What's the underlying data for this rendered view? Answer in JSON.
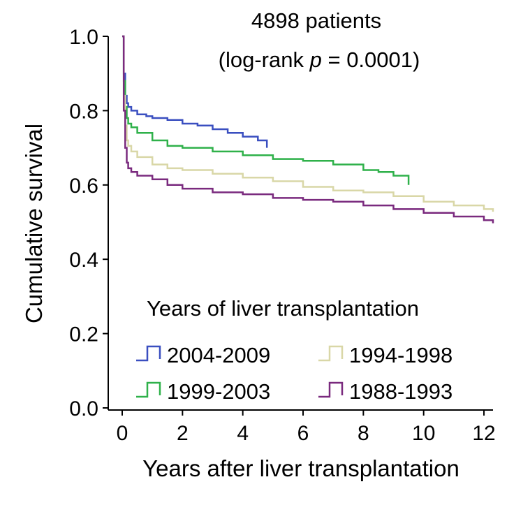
{
  "chart_data": {
    "type": "line",
    "title": "4898 patients",
    "subtitle_prefix": "(log-rank ",
    "subtitle_italic": "p",
    "subtitle_suffix": " = 0.0001)",
    "xlabel": "Years after liver transplantation",
    "ylabel": "Cumulative survival",
    "xlim": [
      0,
      12.3
    ],
    "ylim": [
      0,
      1.0
    ],
    "xticks": [
      0,
      2,
      4,
      6,
      8,
      10,
      12
    ],
    "yticks": [
      "0.0",
      "0.2",
      "0.4",
      "0.6",
      "0.8",
      "1.0"
    ],
    "grid": false,
    "legend": {
      "title": "Years of liver transplantation",
      "placement": "bottom-right",
      "columns": 2
    },
    "series": [
      {
        "name": "2004-2009",
        "color": "#3a4fc0",
        "x": [
          0,
          0.05,
          0.1,
          0.15,
          0.2,
          0.3,
          0.5,
          0.8,
          1.0,
          1.5,
          2.0,
          2.5,
          3.0,
          3.5,
          4.0,
          4.5,
          4.8
        ],
        "y": [
          1.0,
          0.9,
          0.84,
          0.82,
          0.81,
          0.8,
          0.79,
          0.785,
          0.78,
          0.775,
          0.765,
          0.76,
          0.75,
          0.74,
          0.73,
          0.72,
          0.7
        ]
      },
      {
        "name": "1999-2003",
        "color": "#2fb14a",
        "x": [
          0,
          0.05,
          0.1,
          0.15,
          0.2,
          0.3,
          0.5,
          1.0,
          1.5,
          2.0,
          3.0,
          4.0,
          5.0,
          6.0,
          7.0,
          8.0,
          8.5,
          9.0,
          9.5
        ],
        "y": [
          1.0,
          0.88,
          0.81,
          0.78,
          0.765,
          0.755,
          0.74,
          0.72,
          0.705,
          0.7,
          0.69,
          0.68,
          0.67,
          0.665,
          0.655,
          0.64,
          0.635,
          0.625,
          0.6
        ]
      },
      {
        "name": "1994-1998",
        "color": "#d9d7a7",
        "x": [
          0,
          0.05,
          0.1,
          0.15,
          0.2,
          0.3,
          0.5,
          1.0,
          1.5,
          2.0,
          3.0,
          4.0,
          5.0,
          6.0,
          7.0,
          8.0,
          9.0,
          10.0,
          11.0,
          12.0,
          12.3
        ],
        "y": [
          1.0,
          0.84,
          0.76,
          0.72,
          0.705,
          0.69,
          0.675,
          0.655,
          0.645,
          0.64,
          0.63,
          0.62,
          0.61,
          0.595,
          0.585,
          0.58,
          0.57,
          0.555,
          0.545,
          0.535,
          0.528
        ]
      },
      {
        "name": "1988-1993",
        "color": "#7a2a7e",
        "x": [
          0,
          0.05,
          0.1,
          0.15,
          0.2,
          0.3,
          0.5,
          1.0,
          1.5,
          2.0,
          3.0,
          4.0,
          5.0,
          6.0,
          7.0,
          8.0,
          9.0,
          10.0,
          11.0,
          12.0,
          12.3
        ],
        "y": [
          1.0,
          0.8,
          0.7,
          0.66,
          0.645,
          0.635,
          0.625,
          0.615,
          0.6,
          0.59,
          0.58,
          0.575,
          0.565,
          0.56,
          0.555,
          0.545,
          0.535,
          0.525,
          0.515,
          0.505,
          0.497
        ]
      }
    ]
  }
}
